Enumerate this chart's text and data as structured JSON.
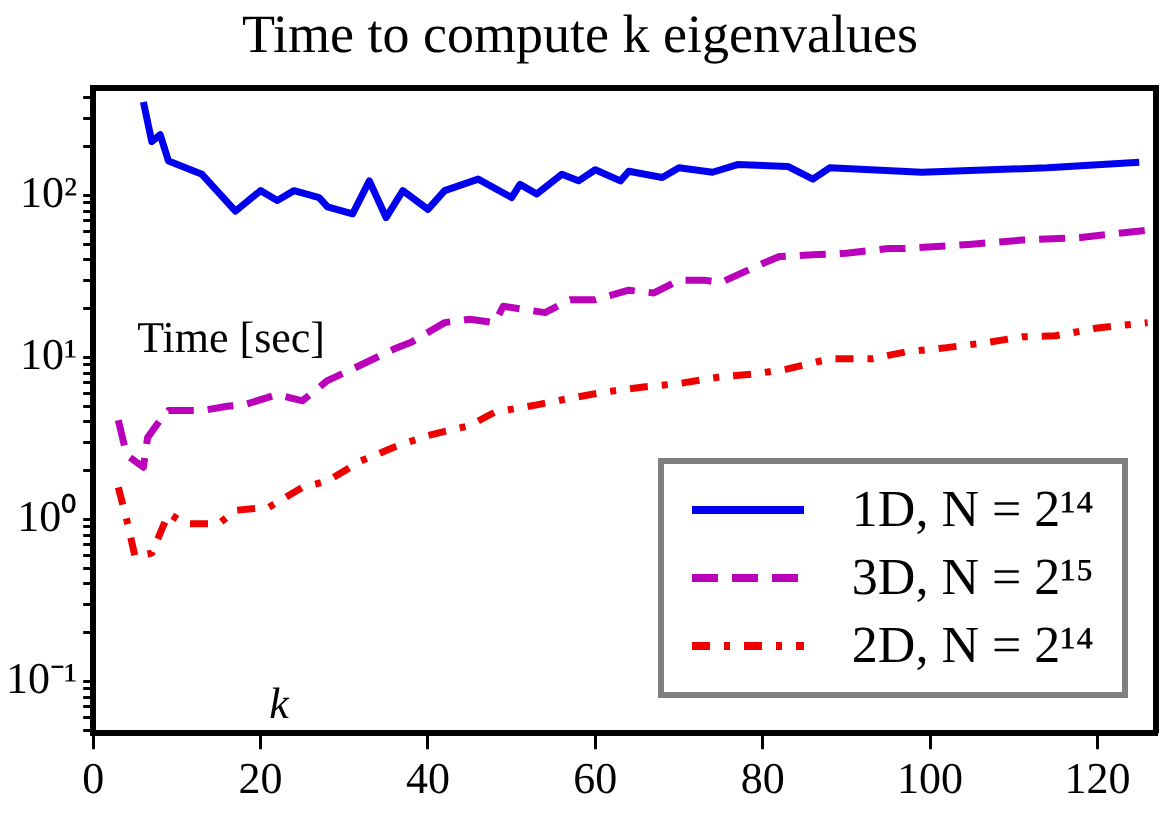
{
  "chart_data": {
    "type": "line",
    "title": "Time to compute k eigenvalues",
    "xlabel": "k",
    "ylabel": "Time [sec]",
    "log": "y",
    "grid": false,
    "legend": "bottom right",
    "marker": "none",
    "xlim": [
      0,
      127
    ],
    "xticks": [
      0,
      20,
      40,
      60,
      80,
      100,
      120
    ],
    "ylim": [
      0.048,
      460
    ],
    "yticks": [
      {
        "value": 0.05,
        "label": null
      },
      {
        "value": 0.06,
        "label": null
      },
      {
        "value": 0.07,
        "label": null
      },
      {
        "value": 0.08,
        "label": null
      },
      {
        "value": 0.09,
        "label": null
      },
      {
        "value": 0.1,
        "label": "10⁻¹"
      },
      {
        "value": 0.2,
        "label": null
      },
      {
        "value": 0.3,
        "label": null
      },
      {
        "value": 0.4,
        "label": null
      },
      {
        "value": 0.5,
        "label": null
      },
      {
        "value": 0.6,
        "label": null
      },
      {
        "value": 0.7,
        "label": null
      },
      {
        "value": 0.8,
        "label": null
      },
      {
        "value": 0.9,
        "label": null
      },
      {
        "value": 1,
        "label": "10⁰"
      },
      {
        "value": 2,
        "label": null
      },
      {
        "value": 3,
        "label": null
      },
      {
        "value": 4,
        "label": null
      },
      {
        "value": 5,
        "label": null
      },
      {
        "value": 6,
        "label": null
      },
      {
        "value": 7,
        "label": null
      },
      {
        "value": 8,
        "label": null
      },
      {
        "value": 9,
        "label": null
      },
      {
        "value": 10,
        "label": "10¹"
      },
      {
        "value": 20,
        "label": null
      },
      {
        "value": 30,
        "label": null
      },
      {
        "value": 40,
        "label": null
      },
      {
        "value": 50,
        "label": null
      },
      {
        "value": 60,
        "label": null
      },
      {
        "value": 70,
        "label": null
      },
      {
        "value": 80,
        "label": null
      },
      {
        "value": 90,
        "label": null
      },
      {
        "value": 100,
        "label": "10²"
      },
      {
        "value": 200,
        "label": null
      },
      {
        "value": 300,
        "label": null
      },
      {
        "value": 400,
        "label": null
      }
    ],
    "series": [
      {
        "name": "1D, N = 2¹⁴",
        "color": "#0000ee",
        "line_style": "solid",
        "x": [
          6,
          7,
          8,
          9,
          13,
          17,
          20,
          22,
          24,
          27,
          28,
          31,
          33,
          35,
          37,
          40,
          42,
          46,
          50,
          51,
          53,
          56,
          58,
          60,
          63,
          64,
          68,
          70,
          74,
          77,
          83,
          86,
          88,
          99,
          114,
          125
        ],
        "values": [
          377,
          215,
          237,
          163,
          135,
          80,
          107,
          93,
          107,
          97,
          85,
          77,
          123,
          73,
          107,
          82,
          107,
          126,
          97,
          117,
          102,
          135,
          123,
          144,
          123,
          141,
          129,
          148,
          139,
          155,
          151,
          126,
          148,
          139,
          148,
          160
        ]
      },
      {
        "name": "3D, N = 2¹⁵",
        "color": "#bb00bb",
        "line_style": "dashed",
        "x": [
          3,
          4,
          6,
          6.5,
          8,
          9,
          13,
          16,
          18,
          22,
          25,
          28,
          31,
          36,
          38,
          42,
          45,
          48,
          49,
          54,
          57,
          60,
          64,
          67,
          70,
          73,
          75,
          80,
          82,
          86,
          90,
          95,
          97,
          105,
          111,
          118,
          126
        ],
        "values": [
          4.1,
          2.5,
          2.1,
          3.2,
          4.1,
          4.7,
          4.7,
          5.0,
          5.1,
          5.9,
          5.4,
          7.2,
          8.5,
          11.3,
          12.4,
          16.4,
          17.2,
          16.4,
          20.7,
          18.9,
          22.7,
          22.7,
          26,
          25,
          30,
          30,
          29,
          38,
          42,
          43,
          44,
          47,
          47,
          50,
          53,
          55,
          61
        ]
      },
      {
        "name": "2D, N = 2¹⁴",
        "color": "#ee0000",
        "line_style": "dotted",
        "x": [
          3,
          4,
          5,
          7,
          9,
          11,
          15,
          17,
          21,
          25,
          28,
          32,
          36,
          40,
          45,
          48,
          53,
          57,
          61,
          66,
          70,
          75,
          79,
          83,
          88,
          93,
          97,
          102,
          107,
          111,
          115,
          120,
          126
        ],
        "values": [
          1.58,
          1.0,
          0.59,
          0.62,
          1.09,
          0.94,
          0.94,
          1.14,
          1.19,
          1.58,
          1.73,
          2.3,
          2.8,
          3.3,
          3.8,
          4.6,
          5.1,
          5.6,
          6.1,
          6.6,
          6.9,
          7.6,
          7.9,
          8.5,
          9.8,
          9.8,
          10.8,
          11.5,
          12.4,
          13.4,
          13.6,
          15.2,
          16.4
        ]
      }
    ]
  }
}
